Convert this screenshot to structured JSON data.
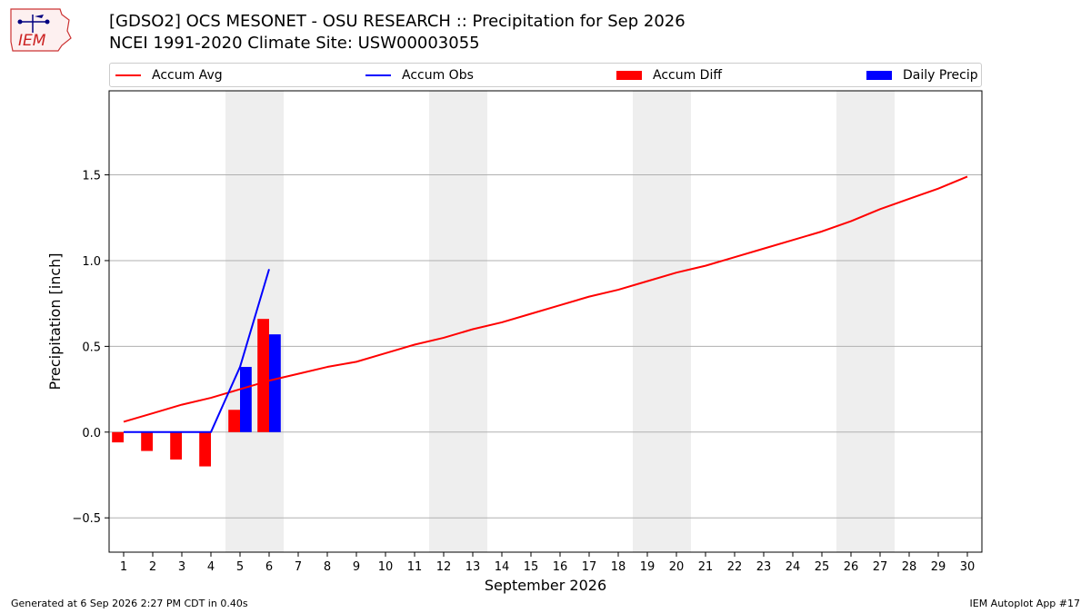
{
  "header": {
    "title_line1": "[GDSO2] OCS MESONET - OSU RESEARCH :: Precipitation for Sep 2026",
    "title_line2": "NCEI 1991-2020 Climate Site: USW00003055",
    "logo_text": "IEM"
  },
  "footer": {
    "left": "Generated at 6 Sep 2026 2:27 PM CDT in 0.40s",
    "right": "IEM Autoplot App #17"
  },
  "colors": {
    "avg": "#ff0000",
    "obs": "#0000ff",
    "diff": "#ff0000",
    "daily": "#0000ff",
    "weekend_shade": "#eeeeee",
    "grid": "#b0b0b0"
  },
  "chart_data": {
    "type": "bar",
    "title": "[GDSO2] OCS MESONET - OSU RESEARCH :: Precipitation for Sep 2026",
    "subtitle": "NCEI 1991-2020 Climate Site: USW00003055",
    "xlabel": "September 2026",
    "ylabel": "Precipitation [inch]",
    "ylim": [
      -0.7,
      1.99
    ],
    "xlim": [
      0.5,
      30.5
    ],
    "yticks": [
      -0.5,
      0.0,
      0.5,
      1.0,
      1.5
    ],
    "ytick_labels": [
      "−0.5",
      "0.0",
      "0.5",
      "1.0",
      "1.5"
    ],
    "days": [
      1,
      2,
      3,
      4,
      5,
      6,
      7,
      8,
      9,
      10,
      11,
      12,
      13,
      14,
      15,
      16,
      17,
      18,
      19,
      20,
      21,
      22,
      23,
      24,
      25,
      26,
      27,
      28,
      29,
      30
    ],
    "weekend_shading": [
      [
        4.5,
        6.5
      ],
      [
        11.5,
        13.5
      ],
      [
        18.5,
        20.5
      ],
      [
        25.5,
        27.5
      ]
    ],
    "grid": "horizontal",
    "legend_position": "top",
    "legend": [
      "Accum Avg",
      "Accum Obs",
      "Accum Diff",
      "Daily Precip"
    ],
    "series": [
      {
        "name": "Accum Avg",
        "kind": "line",
        "color": "#ff0000",
        "x": [
          1,
          2,
          3,
          4,
          5,
          6,
          7,
          8,
          9,
          10,
          11,
          12,
          13,
          14,
          15,
          16,
          17,
          18,
          19,
          20,
          21,
          22,
          23,
          24,
          25,
          26,
          27,
          28,
          29,
          30
        ],
        "values": [
          0.06,
          0.11,
          0.16,
          0.2,
          0.25,
          0.3,
          0.34,
          0.38,
          0.41,
          0.46,
          0.51,
          0.55,
          0.6,
          0.64,
          0.69,
          0.74,
          0.79,
          0.83,
          0.88,
          0.93,
          0.97,
          1.02,
          1.07,
          1.12,
          1.17,
          1.23,
          1.3,
          1.36,
          1.42,
          1.49
        ]
      },
      {
        "name": "Accum Obs",
        "kind": "line",
        "color": "#0000ff",
        "x": [
          1,
          2,
          3,
          4,
          5,
          6
        ],
        "values": [
          0.0,
          0.0,
          0.0,
          0.0,
          0.38,
          0.95
        ]
      },
      {
        "name": "Accum Diff",
        "kind": "bar",
        "color": "#ff0000",
        "x": [
          1,
          2,
          3,
          4,
          5,
          6
        ],
        "values": [
          -0.06,
          -0.11,
          -0.16,
          -0.2,
          0.13,
          0.66
        ]
      },
      {
        "name": "Daily Precip",
        "kind": "bar",
        "color": "#0000ff",
        "x": [
          1,
          2,
          3,
          4,
          5,
          6
        ],
        "values": [
          0.0,
          0.0,
          0.0,
          0.0,
          0.38,
          0.57
        ]
      }
    ]
  }
}
